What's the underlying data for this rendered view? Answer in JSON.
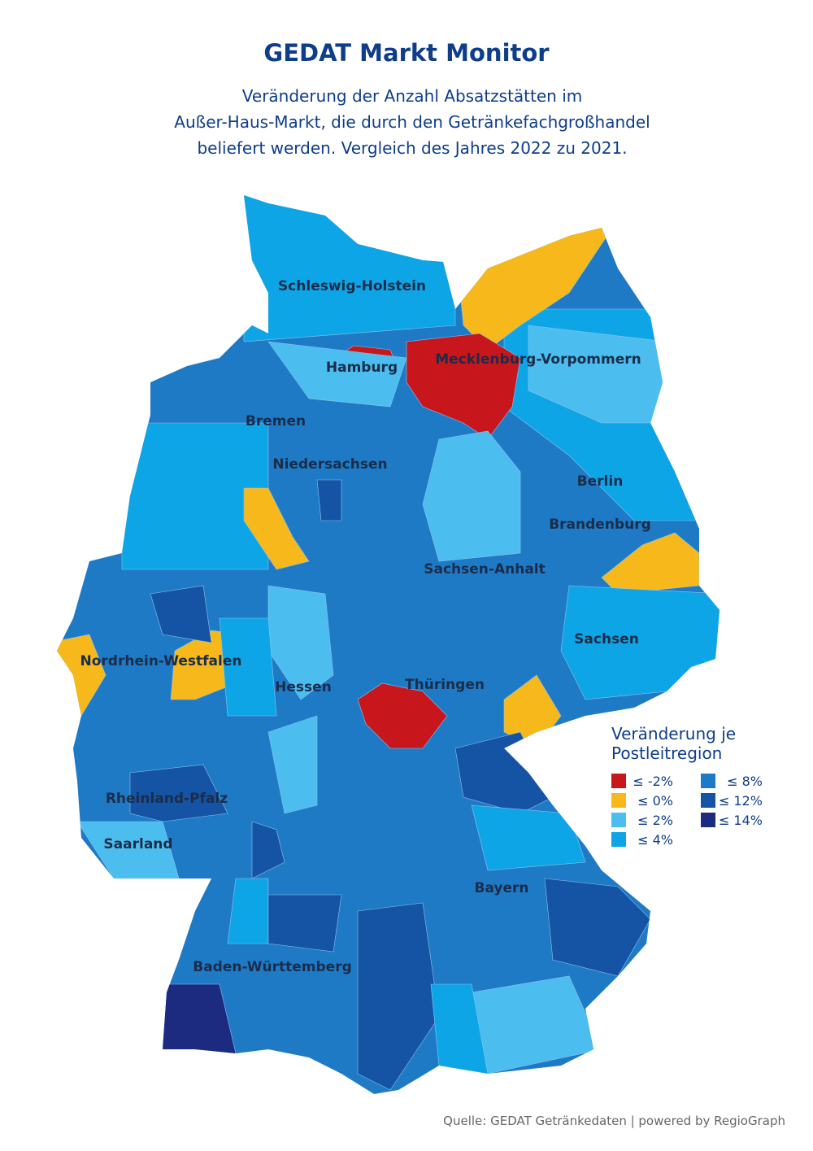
{
  "title": "GEDAT Markt Monitor",
  "subtitle": [
    "Veränderung der Anzahl Absatzstätten im",
    "Außer-Haus-Markt, die durch den Getränkefachgroßhandel",
    "beliefert werden. Vergleich des Jahres 2022 zu 2021."
  ],
  "states": [
    "Schleswig-Holstein",
    "Hamburg",
    "Mecklenburg-Vorpommern",
    "Bremen",
    "Niedersachsen",
    "Berlin",
    "Brandenburg",
    "Sachsen-Anhalt",
    "Sachsen",
    "Nordrhein-Westfalen",
    "Hessen",
    "Thüringen",
    "Rheinland-Pfalz",
    "Saarland",
    "Bayern",
    "Baden-Württemberg"
  ],
  "legend": {
    "title": [
      "Veränderung je",
      "Postleitregion"
    ],
    "items": [
      {
        "label": "≤ -2%",
        "color": "#c8161d"
      },
      {
        "label": "≤ 0%",
        "color": "#f6b81a"
      },
      {
        "label": "≤ 2%",
        "color": "#4bbdee"
      },
      {
        "label": "≤ 4%",
        "color": "#0ea5e6"
      },
      {
        "label": "≤ 8%",
        "color": "#1f7ac6"
      },
      {
        "label": "≤ 12%",
        "color": "#1553a5"
      },
      {
        "label": "≤ 14%",
        "color": "#1c2a80"
      }
    ]
  },
  "source": "Quelle: GEDAT Getränkedaten | powered by RegioGraph"
}
